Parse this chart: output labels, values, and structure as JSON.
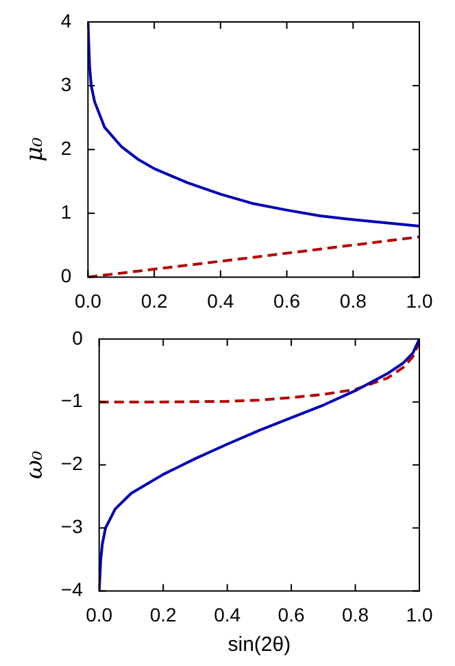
{
  "chart_data": [
    {
      "type": "line",
      "ylabel": "μ₀",
      "xlim": [
        0,
        1
      ],
      "ylim": [
        0,
        4
      ],
      "xticks": [
        {
          "value": 0,
          "label": "0.0"
        },
        {
          "value": 0.2,
          "label": "0.2"
        },
        {
          "value": 0.4,
          "label": "0.4"
        },
        {
          "value": 0.6,
          "label": "0.6"
        },
        {
          "value": 0.8,
          "label": "0.8"
        },
        {
          "value": 1,
          "label": "1.0"
        }
      ],
      "yticks": [
        0,
        1,
        2,
        3,
        4
      ],
      "series": [
        {
          "color": "#0000b4",
          "line_style": "solid",
          "x": [
            0,
            0.005,
            0.01,
            0.02,
            0.05,
            0.1,
            0.15,
            0.2,
            0.3,
            0.4,
            0.5,
            0.6,
            0.7,
            0.8,
            0.9,
            1
          ],
          "values": [
            4,
            3.3,
            3.0,
            2.75,
            2.35,
            2.05,
            1.85,
            1.7,
            1.48,
            1.3,
            1.15,
            1.05,
            0.96,
            0.9,
            0.85,
            0.8
          ]
        },
        {
          "color": "#b40000",
          "line_style": "dashed",
          "x": [
            0,
            0.5,
            1
          ],
          "values": [
            0,
            0.31,
            0.63
          ]
        }
      ]
    },
    {
      "type": "line",
      "xlabel": "sin(2θ)",
      "ylabel": "ω₀",
      "xlim": [
        0,
        1
      ],
      "ylim": [
        -4,
        0
      ],
      "xticks": [
        {
          "value": 0,
          "label": "0.0"
        },
        {
          "value": 0.2,
          "label": "0.2"
        },
        {
          "value": 0.4,
          "label": "0.4"
        },
        {
          "value": 0.6,
          "label": "0.6"
        },
        {
          "value": 0.8,
          "label": "0.8"
        },
        {
          "value": 1,
          "label": "1.0"
        }
      ],
      "yticks": [
        {
          "value": -4,
          "label": "−4"
        },
        {
          "value": -3,
          "label": "−3"
        },
        {
          "value": -2,
          "label": "−2"
        },
        {
          "value": -1,
          "label": "−1"
        },
        0
      ],
      "series": [
        {
          "color": "#0000b4",
          "line_style": "solid",
          "x": [
            0,
            0.005,
            0.01,
            0.02,
            0.05,
            0.1,
            0.2,
            0.3,
            0.4,
            0.5,
            0.6,
            0.7,
            0.8,
            0.9,
            0.95,
            0.98,
            1
          ],
          "values": [
            -4,
            -3.5,
            -3.25,
            -3.0,
            -2.7,
            -2.45,
            -2.15,
            -1.9,
            -1.67,
            -1.45,
            -1.25,
            -1.05,
            -0.82,
            -0.55,
            -0.38,
            -0.22,
            0
          ]
        },
        {
          "color": "#b40000",
          "line_style": "dashed",
          "x": [
            0,
            0.2,
            0.4,
            0.5,
            0.6,
            0.7,
            0.8,
            0.9,
            0.95,
            0.98,
            1
          ],
          "values": [
            -1,
            -1,
            -0.99,
            -0.97,
            -0.93,
            -0.88,
            -0.8,
            -0.62,
            -0.45,
            -0.28,
            -0.05
          ]
        }
      ]
    }
  ]
}
